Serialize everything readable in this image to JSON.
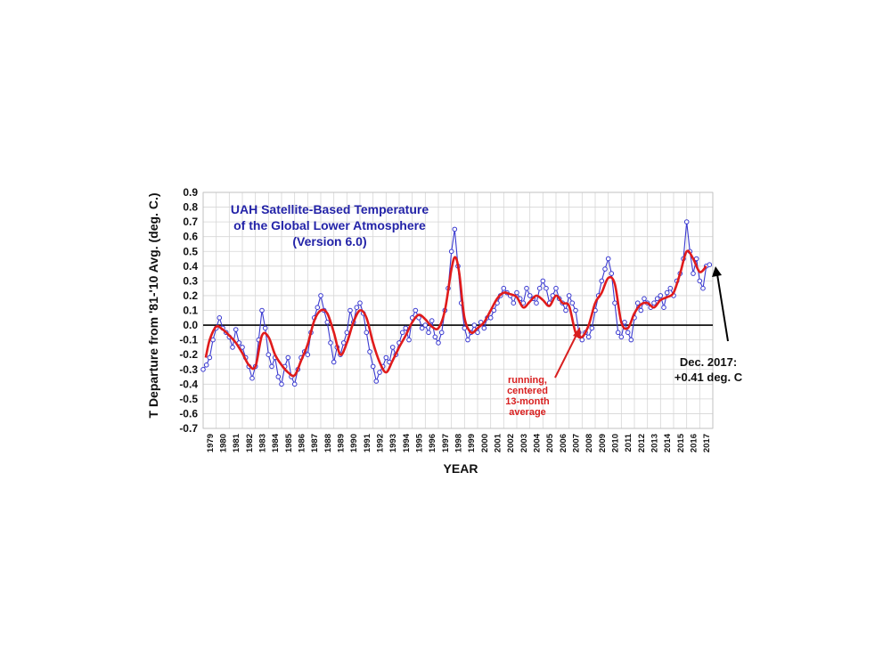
{
  "chart_data": {
    "type": "line",
    "title": [
      "UAH Satellite-Based Temperature",
      "of the Global Lower Atmosphere",
      "(Version 6.0)"
    ],
    "xlabel": "YEAR",
    "ylabel": "T Departure from '81-'10 Avg. (deg. C.)",
    "ylim": [
      -0.7,
      0.9
    ],
    "xlim": [
      1979,
      2018
    ],
    "y_ticks": [
      0.9,
      0.8,
      0.7,
      0.6,
      0.5,
      0.4,
      0.3,
      0.2,
      0.1,
      0.0,
      -0.1,
      -0.2,
      -0.3,
      -0.4,
      -0.5,
      -0.6,
      -0.7
    ],
    "y_tick_labels": [
      "0.9",
      "0.8",
      "0.7",
      "0.6",
      "0.5",
      "0.4",
      "0.3",
      "0.2",
      "0.1",
      "0.0",
      "-0.1",
      "-0.2",
      "-0.3",
      "-0.4",
      "-0.5",
      "-0.6",
      "-0.7"
    ],
    "x_tick_labels": [
      "1979",
      "1980",
      "1981",
      "1982",
      "1983",
      "1984",
      "1985",
      "1986",
      "1987",
      "1988",
      "1989",
      "1990",
      "1991",
      "1992",
      "1993",
      "1994",
      "1995",
      "1996",
      "1997",
      "1998",
      "1999",
      "2000",
      "2001",
      "2002",
      "2003",
      "2004",
      "2005",
      "2006",
      "2007",
      "2008",
      "2009",
      "2010",
      "2011",
      "2012",
      "2013",
      "2014",
      "2015",
      "2016",
      "2017"
    ],
    "grid": true,
    "colors": {
      "monthly": "#3a3ad0",
      "smoothed": "#e01b1b",
      "title": "#2323a8",
      "zero_line": "#000000"
    },
    "series": [
      {
        "style": "line-markers",
        "x": [
          1979.0,
          1979.25,
          1979.5,
          1979.75,
          1980.0,
          1980.25,
          1980.5,
          1980.75,
          1981.0,
          1981.25,
          1981.5,
          1981.75,
          1982.0,
          1982.25,
          1982.5,
          1982.75,
          1983.0,
          1983.25,
          1983.5,
          1983.75,
          1984.0,
          1984.25,
          1984.5,
          1984.75,
          1985.0,
          1985.25,
          1985.5,
          1985.75,
          1986.0,
          1986.25,
          1986.5,
          1986.75,
          1987.0,
          1987.25,
          1987.5,
          1987.75,
          1988.0,
          1988.25,
          1988.5,
          1988.75,
          1989.0,
          1989.25,
          1989.5,
          1989.75,
          1990.0,
          1990.25,
          1990.5,
          1990.75,
          1991.0,
          1991.25,
          1991.5,
          1991.75,
          1992.0,
          1992.25,
          1992.5,
          1992.75,
          1993.0,
          1993.25,
          1993.5,
          1993.75,
          1994.0,
          1994.25,
          1994.5,
          1994.75,
          1995.0,
          1995.25,
          1995.5,
          1995.75,
          1996.0,
          1996.25,
          1996.5,
          1996.75,
          1997.0,
          1997.25,
          1997.5,
          1997.75,
          1998.0,
          1998.25,
          1998.5,
          1998.75,
          1999.0,
          1999.25,
          1999.5,
          1999.75,
          2000.0,
          2000.25,
          2000.5,
          2000.75,
          2001.0,
          2001.25,
          2001.5,
          2001.75,
          2002.0,
          2002.25,
          2002.5,
          2002.75,
          2003.0,
          2003.25,
          2003.5,
          2003.75,
          2004.0,
          2004.25,
          2004.5,
          2004.75,
          2005.0,
          2005.25,
          2005.5,
          2005.75,
          2006.0,
          2006.25,
          2006.5,
          2006.75,
          2007.0,
          2007.25,
          2007.5,
          2007.75,
          2008.0,
          2008.25,
          2008.5,
          2008.75,
          2009.0,
          2009.25,
          2009.5,
          2009.75,
          2010.0,
          2010.25,
          2010.5,
          2010.75,
          2011.0,
          2011.25,
          2011.5,
          2011.75,
          2012.0,
          2012.25,
          2012.5,
          2012.75,
          2013.0,
          2013.25,
          2013.5,
          2013.75,
          2014.0,
          2014.25,
          2014.5,
          2014.75,
          2015.0,
          2015.25,
          2015.5,
          2015.75,
          2016.0,
          2016.25,
          2016.5,
          2016.75,
          2017.0,
          2017.25,
          2017.5,
          2017.75
        ],
        "y": [
          -0.3,
          -0.27,
          -0.22,
          -0.1,
          -0.02,
          0.05,
          -0.02,
          -0.05,
          -0.08,
          -0.15,
          -0.03,
          -0.12,
          -0.15,
          -0.22,
          -0.28,
          -0.36,
          -0.28,
          -0.1,
          0.1,
          -0.02,
          -0.2,
          -0.28,
          -0.22,
          -0.35,
          -0.4,
          -0.28,
          -0.22,
          -0.35,
          -0.4,
          -0.3,
          -0.22,
          -0.18,
          -0.2,
          -0.05,
          0.05,
          0.12,
          0.2,
          0.1,
          0.02,
          -0.12,
          -0.25,
          -0.15,
          -0.2,
          -0.12,
          -0.05,
          0.1,
          0.02,
          0.12,
          0.15,
          0.08,
          -0.05,
          -0.18,
          -0.28,
          -0.38,
          -0.32,
          -0.28,
          -0.22,
          -0.25,
          -0.15,
          -0.2,
          -0.12,
          -0.05,
          -0.02,
          -0.1,
          0.05,
          0.1,
          0.05,
          -0.02,
          0.0,
          -0.05,
          0.03,
          -0.08,
          -0.12,
          -0.05,
          0.1,
          0.25,
          0.5,
          0.65,
          0.4,
          0.15,
          -0.02,
          -0.1,
          -0.05,
          0.0,
          -0.05,
          0.02,
          -0.02,
          0.05,
          0.05,
          0.1,
          0.15,
          0.2,
          0.25,
          0.22,
          0.2,
          0.15,
          0.22,
          0.18,
          0.15,
          0.25,
          0.2,
          0.18,
          0.15,
          0.25,
          0.3,
          0.25,
          0.15,
          0.2,
          0.25,
          0.18,
          0.15,
          0.1,
          0.2,
          0.15,
          0.1,
          -0.05,
          -0.1,
          -0.05,
          -0.08,
          -0.02,
          0.1,
          0.2,
          0.3,
          0.38,
          0.45,
          0.35,
          0.15,
          -0.05,
          -0.08,
          0.02,
          -0.05,
          -0.1,
          0.05,
          0.15,
          0.1,
          0.18,
          0.15,
          0.12,
          0.15,
          0.18,
          0.2,
          0.12,
          0.22,
          0.25,
          0.2,
          0.3,
          0.35,
          0.45,
          0.7,
          0.5,
          0.35,
          0.45,
          0.3,
          0.25,
          0.4,
          0.41
        ],
        "color": "#3a3ad0"
      },
      {
        "style": "smooth",
        "x": [
          1979.2,
          1979.5,
          1980.0,
          1980.5,
          1981.0,
          1981.5,
          1982.0,
          1982.5,
          1983.0,
          1983.5,
          1984.0,
          1984.5,
          1985.0,
          1985.5,
          1986.0,
          1986.5,
          1987.0,
          1987.5,
          1988.0,
          1988.5,
          1989.0,
          1989.5,
          1990.0,
          1990.5,
          1991.0,
          1991.5,
          1992.0,
          1992.5,
          1993.0,
          1993.5,
          1994.0,
          1994.5,
          1995.0,
          1995.5,
          1996.0,
          1996.5,
          1997.0,
          1997.5,
          1998.0,
          1998.3,
          1998.6,
          1999.0,
          1999.5,
          2000.0,
          2000.5,
          2001.0,
          2001.5,
          2002.0,
          2002.5,
          2003.0,
          2003.5,
          2004.0,
          2004.5,
          2005.0,
          2005.5,
          2006.0,
          2006.5,
          2007.0,
          2007.5,
          2008.0,
          2008.5,
          2009.0,
          2009.5,
          2010.0,
          2010.5,
          2011.0,
          2011.5,
          2012.0,
          2012.5,
          2013.0,
          2013.5,
          2014.0,
          2014.5,
          2015.0,
          2015.5,
          2016.0,
          2016.5,
          2017.0,
          2017.5
        ],
        "y": [
          -0.22,
          -0.1,
          -0.01,
          -0.03,
          -0.07,
          -0.12,
          -0.19,
          -0.27,
          -0.28,
          -0.07,
          -0.08,
          -0.2,
          -0.27,
          -0.32,
          -0.34,
          -0.24,
          -0.13,
          0.03,
          0.1,
          0.08,
          -0.05,
          -0.2,
          -0.12,
          0.02,
          0.1,
          0.05,
          -0.12,
          -0.25,
          -0.32,
          -0.24,
          -0.15,
          -0.07,
          0.02,
          0.07,
          0.04,
          -0.01,
          -0.02,
          0.1,
          0.38,
          0.46,
          0.35,
          0.05,
          -0.05,
          -0.02,
          0.02,
          0.1,
          0.18,
          0.22,
          0.21,
          0.19,
          0.12,
          0.16,
          0.2,
          0.17,
          0.13,
          0.2,
          0.15,
          0.13,
          -0.05,
          -0.08,
          0.0,
          0.15,
          0.22,
          0.32,
          0.28,
          0.02,
          -0.02,
          0.08,
          0.14,
          0.15,
          0.12,
          0.17,
          0.19,
          0.22,
          0.35,
          0.5,
          0.45,
          0.36,
          0.4
        ],
        "color": "#e01b1b"
      }
    ],
    "annotations": [
      {
        "lines": [
          "running,",
          "centered",
          "13-month",
          "average"
        ],
        "color": "#d81f1f",
        "target_x": 2007.9,
        "target_y": -0.08
      },
      {
        "lines": [
          "Dec. 2017:",
          "+0.41 deg. C"
        ],
        "color": "#000000",
        "target_x": 2017.9,
        "target_y": 0.41
      }
    ]
  }
}
